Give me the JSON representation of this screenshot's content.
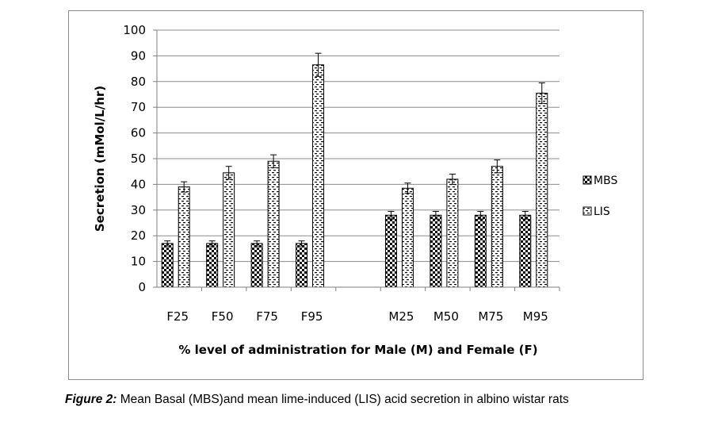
{
  "chart_data": {
    "type": "bar",
    "title": "",
    "categories": [
      "F25",
      "F50",
      "F75",
      "F95",
      "",
      "M25",
      "M50",
      "M75",
      "M95"
    ],
    "series": [
      {
        "name": "MBS",
        "values": [
          17,
          17,
          17,
          17,
          null,
          28,
          28,
          28,
          28
        ],
        "errors": [
          1,
          1,
          1,
          1,
          null,
          1.5,
          1.5,
          1.5,
          1.5
        ]
      },
      {
        "name": "LIS",
        "values": [
          39,
          44.5,
          49,
          86.5,
          null,
          38.5,
          42,
          47,
          75.5
        ],
        "errors": [
          2,
          2.5,
          2.5,
          4.5,
          null,
          2,
          2,
          2.5,
          4
        ]
      }
    ],
    "xlabel": "% level of administration for Male (M) and Female (F)",
    "ylabel": "Secretion (mMol/L/hr)",
    "ylim": [
      0,
      100
    ],
    "yticks": [
      "0",
      "10",
      "20",
      "30",
      "40",
      "50",
      "60",
      "70",
      "80",
      "90",
      "100"
    ],
    "grid": true,
    "legend_position": "right"
  },
  "caption": {
    "label": "Figure 2:",
    "text": " Mean Basal (MBS)and mean lime-induced (LIS) acid secretion in albino wistar rats"
  },
  "colors": {
    "frame": "#8c8c8c",
    "grid": "#8c8c8c",
    "bar_fill": "#ffffff",
    "bar_pattern": "#000000"
  }
}
